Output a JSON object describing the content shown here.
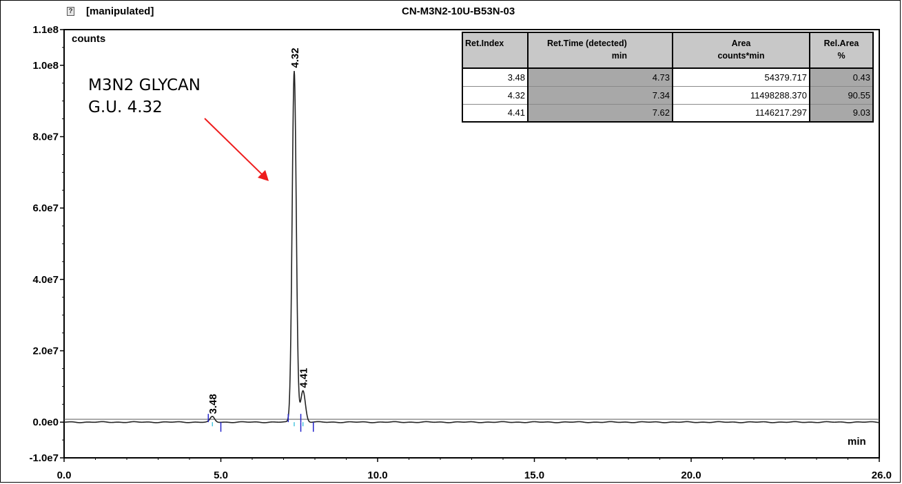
{
  "header": {
    "status": "[manipulated]",
    "sample_name": "CN-M3N2-10U-B53N-03",
    "icon": "question-doc-icon"
  },
  "annotation": {
    "line1": "M3N2 GLYCAN",
    "line2": "G.U. 4.32",
    "arrow_color": "#ee1c1c"
  },
  "results_table": {
    "headers": [
      {
        "line1": "Ret.Index",
        "line2": ""
      },
      {
        "line1": "Ret.Time (detected)",
        "line2": "min"
      },
      {
        "line1": "Area",
        "line2": "counts*min"
      },
      {
        "line1": "Rel.Area",
        "line2": "%"
      }
    ],
    "rows": [
      [
        "3.48",
        "4.73",
        "54379.717",
        "0.43"
      ],
      [
        "4.32",
        "7.34",
        "11498288.370",
        "90.55"
      ],
      [
        "4.41",
        "7.62",
        "1146217.297",
        "9.03"
      ]
    ]
  },
  "chart_data": {
    "type": "line",
    "title": "",
    "xlabel": "min",
    "ylabel": "counts",
    "xlim": [
      0,
      26
    ],
    "ylim": [
      -10000000,
      110000000
    ],
    "x_ticks": [
      0,
      5,
      10,
      15,
      20,
      26
    ],
    "x_tick_labels": [
      "0.0",
      "5.0",
      "10.0",
      "15.0",
      "20.0",
      "26.0"
    ],
    "y_ticks": [
      -10000000,
      0,
      20000000,
      40000000,
      60000000,
      80000000,
      100000000,
      110000000
    ],
    "y_tick_labels": [
      "-1.0e7",
      "0.0e0",
      "2.0e7",
      "4.0e7",
      "6.0e7",
      "8.0e7",
      "1.0e8",
      "1.1e8"
    ],
    "grid": false,
    "trace_color": "#222222",
    "baseline_marker_color": "#2222cc",
    "peaks": [
      {
        "label": "3.48",
        "rt": 4.73,
        "height": 1500000,
        "width": 0.07,
        "start": 4.6,
        "end": 5.0
      },
      {
        "label": "4.32",
        "rt": 7.34,
        "height": 98500000,
        "width": 0.065,
        "start": 7.15,
        "end": 7.55
      },
      {
        "label": "4.41",
        "rt": 7.62,
        "height": 8800000,
        "width": 0.075,
        "start": 7.55,
        "end": 7.95
      }
    ]
  }
}
